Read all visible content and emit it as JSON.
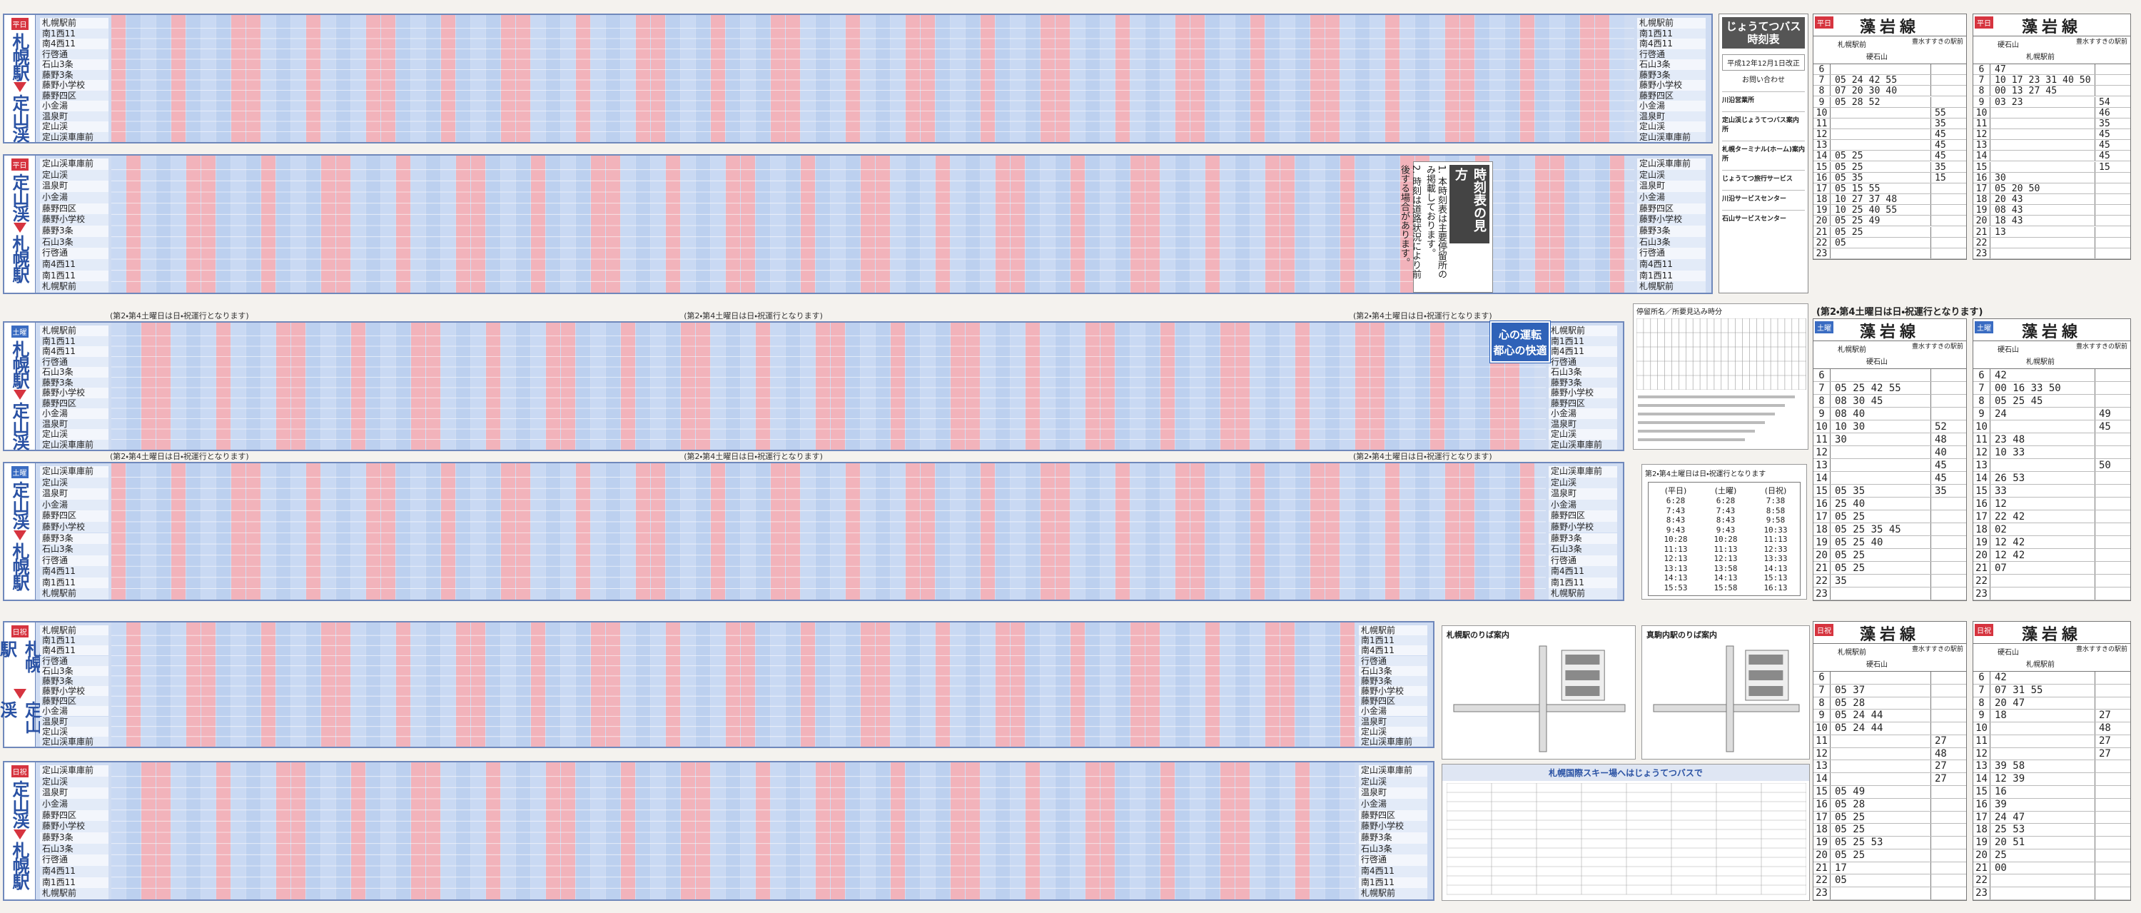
{
  "panels": [
    {
      "day": "平日",
      "from": "札幌駅",
      "to": "定山渓",
      "stations": [
        "札幌駅前",
        "南1西11",
        "南4西11",
        "行啓通",
        "石山3条",
        "藤野3条",
        "藤野小学校",
        "藤野四区",
        "小金湯",
        "温泉町",
        "定山渓",
        "定山渓車庫前"
      ]
    },
    {
      "day": "平日",
      "from": "定山渓",
      "to": "札幌駅",
      "stations": [
        "定山渓車庫前",
        "定山渓",
        "温泉町",
        "小金湯",
        "藤野四区",
        "藤野小学校",
        "藤野3条",
        "石山3条",
        "行啓通",
        "南4西11",
        "南1西11",
        "札幌駅前"
      ]
    },
    {
      "day": "土曜",
      "from": "札幌駅",
      "to": "定山渓",
      "note": "(第2・第4土曜日は日・祝運行となります)",
      "stations": [
        "札幌駅前",
        "南1西11",
        "南4西11",
        "行啓通",
        "石山3条",
        "藤野3条",
        "藤野小学校",
        "藤野四区",
        "小金湯",
        "温泉町",
        "定山渓",
        "定山渓車庫前"
      ]
    },
    {
      "day": "土曜",
      "from": "定山渓",
      "to": "札幌駅",
      "note": "(第2・第4土曜日は日・祝運行となります)",
      "stations": [
        "定山渓車庫前",
        "定山渓",
        "温泉町",
        "小金湯",
        "藤野四区",
        "藤野小学校",
        "藤野3条",
        "石山3条",
        "行啓通",
        "南4西11",
        "南1西11",
        "札幌駅前"
      ]
    },
    {
      "day": "日祝",
      "from": "札幌駅",
      "to": "定山渓",
      "stations": [
        "札幌駅前",
        "南1西11",
        "南4西11",
        "行啓通",
        "石山3条",
        "藤野3条",
        "藤野小学校",
        "藤野四区",
        "小金湯",
        "温泉町",
        "定山渓",
        "定山渓車庫前"
      ]
    },
    {
      "day": "日祝",
      "from": "定山渓",
      "to": "札幌駅",
      "stations": [
        "定山渓車庫前",
        "定山渓",
        "温泉町",
        "小金湯",
        "藤野四区",
        "藤野小学校",
        "藤野3条",
        "石山3条",
        "行啓通",
        "南4西11",
        "南1西11",
        "札幌駅前"
      ]
    }
  ],
  "info": {
    "brand": "じょうてつバス",
    "title": "時刻表",
    "revised": "平成12年12月1日改正",
    "contact": "お問い合わせ",
    "offices": [
      "川沿営業所",
      "定山渓じょうてつバス案内所",
      "札幌ターミナル(ホーム)案内所",
      "じょうてつ旅行サービス",
      "川沿サービスセンター",
      "石山サービスセンター"
    ]
  },
  "howto": {
    "title": "時刻表の見方",
    "items": [
      "1. 本時刻表は主要停留所のみ掲載しております。",
      "2. 時刻は道路状況により前後する場合があります。"
    ]
  },
  "slogan": [
    "心の運転",
    "都心の快適"
  ],
  "stops_note": "停留所名／所要見込み時分",
  "express": {
    "note": "第2・第4土曜日は日・祝運行となります",
    "heads": [
      "(平日)",
      "(土曜)",
      "(日祝)"
    ],
    "cols": [
      [
        "6:28",
        "7:43",
        "8:43",
        "9:43",
        "10:28",
        "11:13",
        "12:13",
        "13:13",
        "14:13",
        "15:53"
      ],
      [
        "6:28",
        "7:43",
        "8:43",
        "9:43",
        "10:28",
        "11:13",
        "12:13",
        "13:58",
        "14:13",
        "15:58"
      ],
      [
        "7:38",
        "8:58",
        "9:58",
        "10:33",
        "11:13",
        "12:33",
        "13:33",
        "14:13",
        "15:13",
        "16:13"
      ]
    ]
  },
  "maps": [
    "札幌駅のりば案内",
    "真駒内駅のりば案内"
  ],
  "ski": "札幌国際スキー場へはじょうてつバスで",
  "moiwa_note": "(第2・第4土曜日は日・祝運行となります)",
  "moiwa": [
    {
      "day": "平日",
      "title": "藻岩線",
      "from": "札幌駅前",
      "to": "硬石山",
      "via": "豊水すすきの駅前",
      "rows": [
        {
          "h": 6
        },
        {
          "h": 7,
          "a": "05 24 42 55"
        },
        {
          "h": 8,
          "a": "07 20 30 40"
        },
        {
          "h": 9,
          "a": "05 28 52"
        },
        {
          "h": 10,
          "b": "55"
        },
        {
          "h": 11,
          "b": "35"
        },
        {
          "h": 12,
          "b": "45"
        },
        {
          "h": 13,
          "b": "45"
        },
        {
          "h": 14,
          "a": "05 25",
          "b": "45"
        },
        {
          "h": 15,
          "a": "05 25",
          "b": "35"
        },
        {
          "h": 16,
          "a": "05 35",
          "b": "15"
        },
        {
          "h": 17,
          "a": "05 15 55"
        },
        {
          "h": 18,
          "a": "10 27 37 48"
        },
        {
          "h": 19,
          "a": "10 25 40 55"
        },
        {
          "h": 20,
          "a": "05 25 49"
        },
        {
          "h": 21,
          "a": "05 25"
        },
        {
          "h": 22,
          "a": "05"
        },
        {
          "h": 23
        }
      ]
    },
    {
      "day": "平日",
      "title": "藻岩線",
      "from": "硬石山",
      "to": "札幌駅前",
      "via": "豊水すすきの駅前",
      "rows": [
        {
          "h": 6,
          "a": "47"
        },
        {
          "h": 7,
          "a": "10 17 23 31 40 50"
        },
        {
          "h": 8,
          "a": "00 13 27 45"
        },
        {
          "h": 9,
          "a": "03 23",
          "b": "54"
        },
        {
          "h": 10,
          "b": "46"
        },
        {
          "h": 11,
          "b": "35"
        },
        {
          "h": 12,
          "b": "45"
        },
        {
          "h": 13,
          "b": "45"
        },
        {
          "h": 14,
          "b": "45"
        },
        {
          "h": 15,
          "b": "15"
        },
        {
          "h": 16,
          "a": "30"
        },
        {
          "h": 17,
          "a": "05 20 50"
        },
        {
          "h": 18,
          "a": "20 43"
        },
        {
          "h": 19,
          "a": "08 43"
        },
        {
          "h": 20,
          "a": "18 43"
        },
        {
          "h": 21,
          "a": "13"
        },
        {
          "h": 22
        },
        {
          "h": 23
        }
      ]
    },
    {
      "day": "土曜",
      "title": "藻岩線",
      "from": "札幌駅前",
      "to": "硬石山",
      "via": "豊水すすきの駅前",
      "rows": [
        {
          "h": 6
        },
        {
          "h": 7,
          "a": "05 25 42 55"
        },
        {
          "h": 8,
          "a": "08 30 45"
        },
        {
          "h": 9,
          "a": "08 40"
        },
        {
          "h": 10,
          "a": "10 30",
          "b": "52"
        },
        {
          "h": 11,
          "a": "30",
          "b": "48"
        },
        {
          "h": 12,
          "b": "40"
        },
        {
          "h": 13,
          "b": "45"
        },
        {
          "h": 14,
          "b": "45"
        },
        {
          "h": 15,
          "a": "05 35",
          "b": "35"
        },
        {
          "h": 16,
          "a": "25 40"
        },
        {
          "h": 17,
          "a": "05 25"
        },
        {
          "h": 18,
          "a": "05 25 35 45"
        },
        {
          "h": 19,
          "a": "05 25 40"
        },
        {
          "h": 20,
          "a": "05 25"
        },
        {
          "h": 21,
          "a": "05 25"
        },
        {
          "h": 22,
          "a": "35"
        },
        {
          "h": 23
        }
      ]
    },
    {
      "day": "土曜",
      "title": "藻岩線",
      "from": "硬石山",
      "to": "札幌駅前",
      "via": "豊水すすきの駅前",
      "rows": [
        {
          "h": 6,
          "a": "42"
        },
        {
          "h": 7,
          "a": "00 16 33 50"
        },
        {
          "h": 8,
          "a": "05 25 45"
        },
        {
          "h": 9,
          "a": "24",
          "b": "49"
        },
        {
          "h": 10,
          "b": "45"
        },
        {
          "h": 11,
          "a": "23 48"
        },
        {
          "h": 12,
          "a": "10 33"
        },
        {
          "h": 13,
          "b": "50"
        },
        {
          "h": 14,
          "a": "26 53"
        },
        {
          "h": 15,
          "a": "33"
        },
        {
          "h": 16,
          "a": "12"
        },
        {
          "h": 17,
          "a": "22 42"
        },
        {
          "h": 18,
          "a": "02"
        },
        {
          "h": 19,
          "a": "12 42"
        },
        {
          "h": 20,
          "a": "12 42"
        },
        {
          "h": 21,
          "a": "07"
        },
        {
          "h": 22
        },
        {
          "h": 23
        }
      ]
    },
    {
      "day": "日祝",
      "title": "藻岩線",
      "from": "札幌駅前",
      "to": "硬石山",
      "via": "豊水すすきの駅前",
      "rows": [
        {
          "h": 6
        },
        {
          "h": 7,
          "a": "05 37"
        },
        {
          "h": 8,
          "a": "05 28"
        },
        {
          "h": 9,
          "a": "05 24 44"
        },
        {
          "h": 10,
          "a": "05 24 44"
        },
        {
          "h": 11,
          "b": "27"
        },
        {
          "h": 12,
          "b": "48"
        },
        {
          "h": 13,
          "b": "27"
        },
        {
          "h": 14,
          "b": "27"
        },
        {
          "h": 15,
          "a": "05 49"
        },
        {
          "h": 16,
          "a": "05 28"
        },
        {
          "h": 17,
          "a": "05 25"
        },
        {
          "h": 18,
          "a": "05 25"
        },
        {
          "h": 19,
          "a": "05 25 53"
        },
        {
          "h": 20,
          "a": "05 25"
        },
        {
          "h": 21,
          "a": "17"
        },
        {
          "h": 22,
          "a": "05"
        },
        {
          "h": 23
        }
      ]
    },
    {
      "day": "日祝",
      "title": "藻岩線",
      "from": "硬石山",
      "to": "札幌駅前",
      "via": "豊水すすきの駅前",
      "rows": [
        {
          "h": 6,
          "a": "42"
        },
        {
          "h": 7,
          "a": "07 31 55"
        },
        {
          "h": 8,
          "a": "20 47"
        },
        {
          "h": 9,
          "a": "18",
          "b": "27"
        },
        {
          "h": 10,
          "b": "48"
        },
        {
          "h": 11,
          "b": "27"
        },
        {
          "h": 12,
          "b": "27"
        },
        {
          "h": 13,
          "a": "39 58"
        },
        {
          "h": 14,
          "a": "12 39"
        },
        {
          "h": 15,
          "a": "16"
        },
        {
          "h": 16,
          "a": "39"
        },
        {
          "h": 17,
          "a": "24 47"
        },
        {
          "h": 18,
          "a": "25 53"
        },
        {
          "h": 19,
          "a": "20 51"
        },
        {
          "h": 20,
          "a": "25"
        },
        {
          "h": 21,
          "a": "00"
        },
        {
          "h": 22
        },
        {
          "h": 23
        }
      ]
    }
  ]
}
